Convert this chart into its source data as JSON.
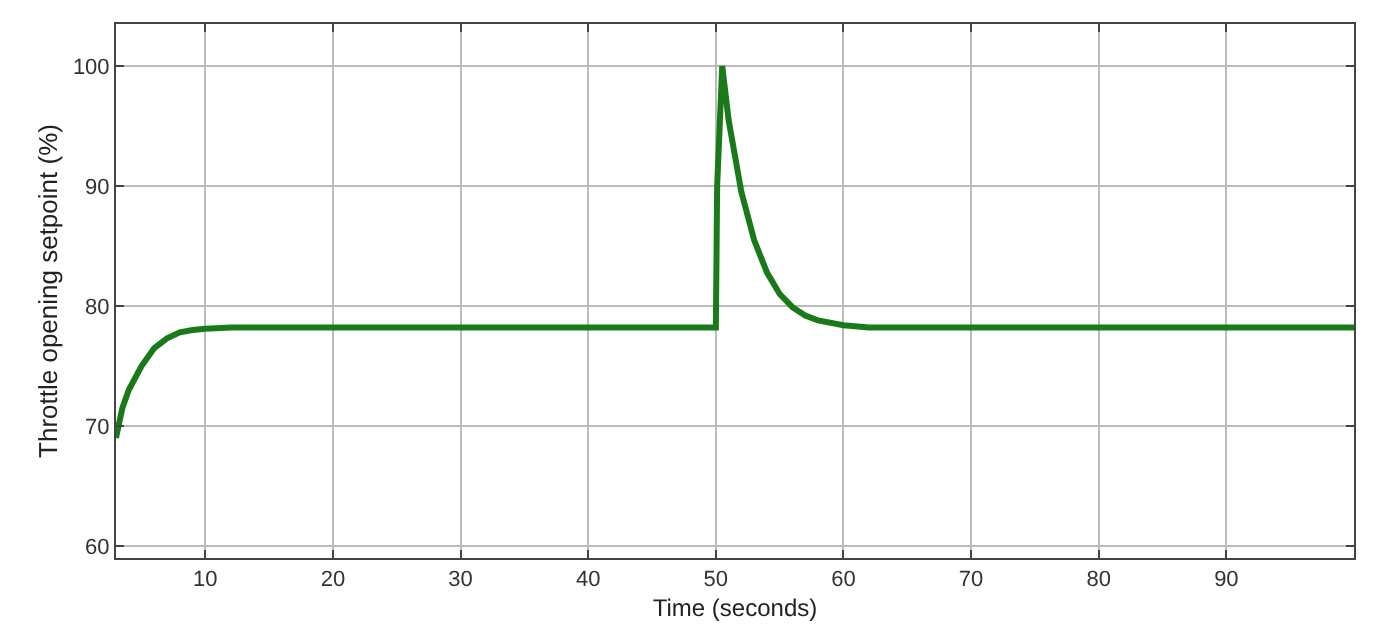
{
  "chart_data": {
    "type": "line",
    "xlabel": "Time (seconds)",
    "ylabel": "Throttle opening setpoint (%)",
    "x": [
      3,
      3.5,
      4,
      5,
      6,
      7,
      8,
      9,
      10,
      12,
      20,
      30,
      40,
      50,
      50.1,
      50.5,
      51,
      52,
      53,
      54,
      55,
      56,
      57,
      58,
      60,
      62,
      70,
      80,
      90,
      100
    ],
    "series": [
      {
        "color": "#1a7a1a",
        "values": [
          69,
          71.5,
          73,
          75,
          76.5,
          77.3,
          77.8,
          78,
          78.1,
          78.2,
          78.2,
          78.2,
          78.2,
          78.2,
          90,
          100,
          95.5,
          89.5,
          85.5,
          82.8,
          81,
          79.9,
          79.2,
          78.8,
          78.4,
          78.2,
          78.2,
          78.2,
          78.2,
          78.2
        ]
      }
    ],
    "xlim": [
      3,
      100
    ],
    "xticks": [
      10,
      20,
      30,
      40,
      50,
      60,
      70,
      80,
      90
    ],
    "ylim": [
      59,
      103.5
    ],
    "yticks": [
      60,
      70,
      80,
      90,
      100
    ],
    "grid": true,
    "marker": "none",
    "line_style": "solid"
  }
}
